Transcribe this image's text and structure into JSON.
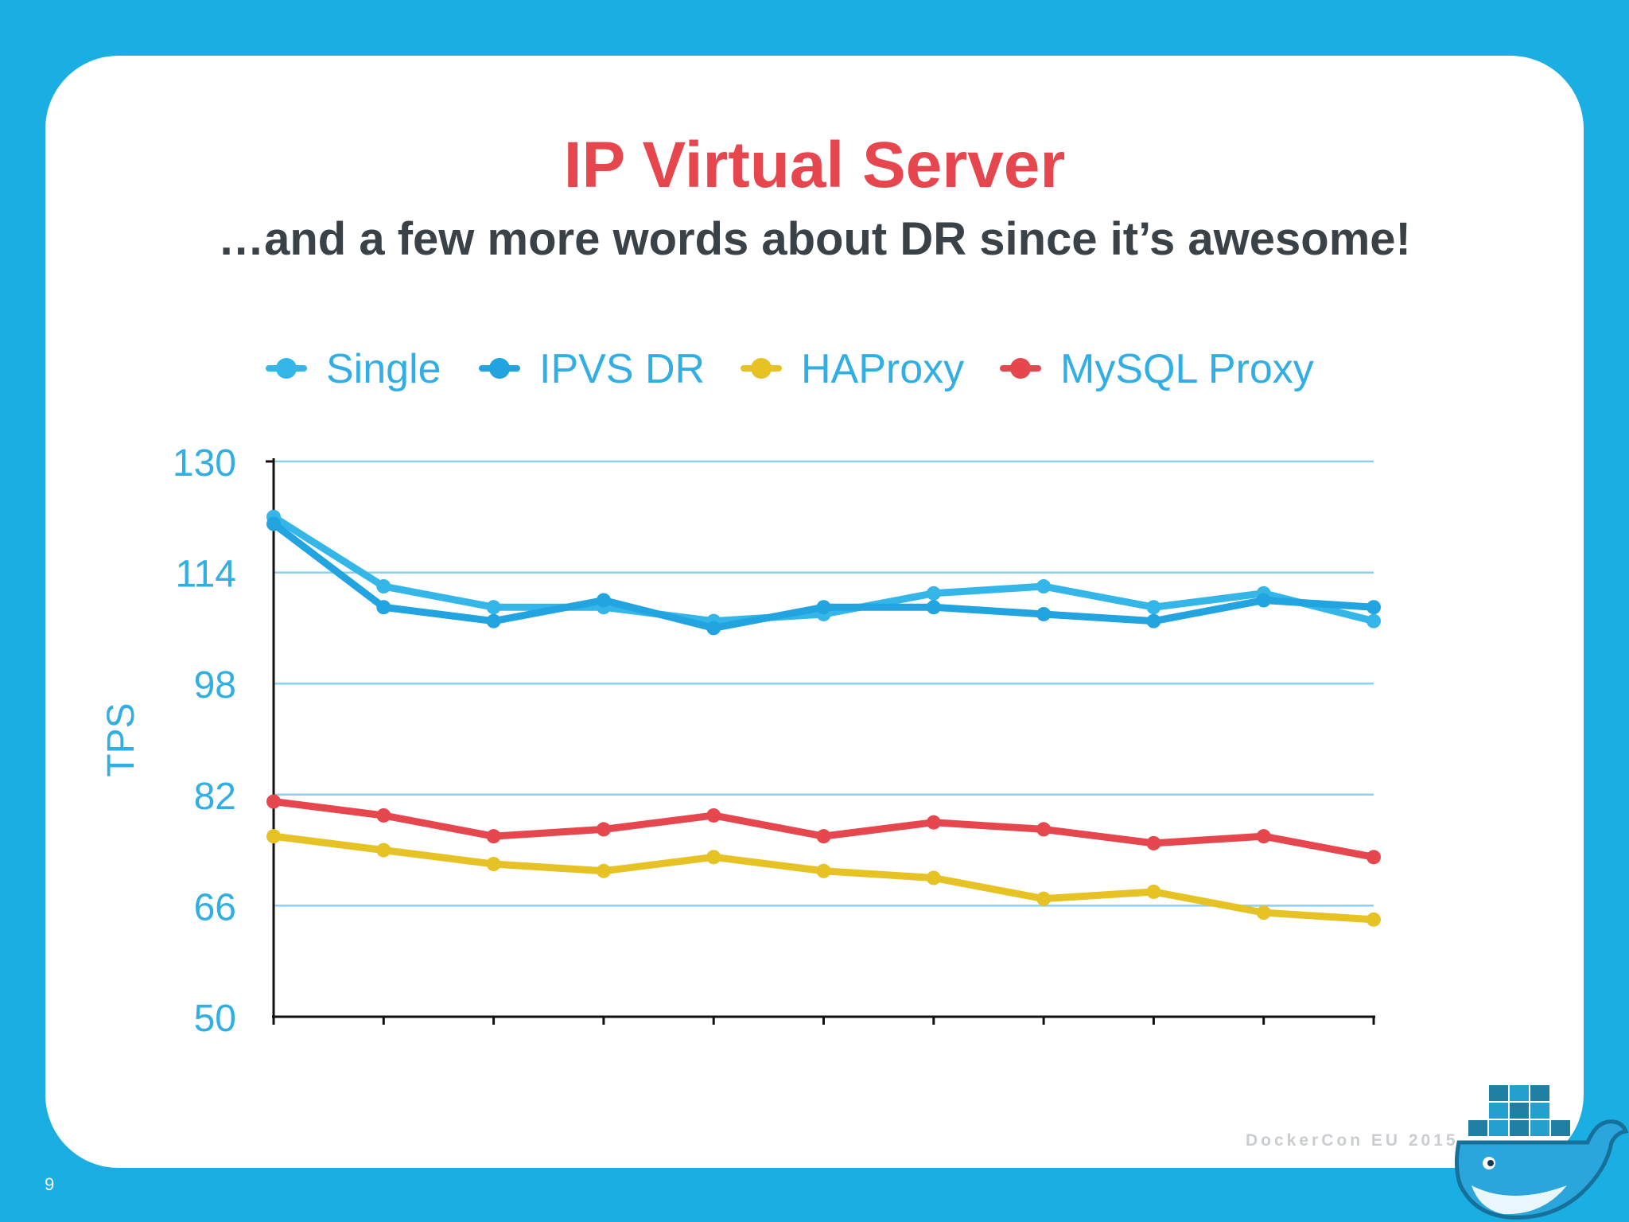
{
  "slide": {
    "title": "IP Virtual Server",
    "subtitle": "…and a few more words about DR since it’s awesome!",
    "page_number": "9",
    "footer": "DockerCon EU 2015"
  },
  "colors": {
    "background": "#1aaee2",
    "title": "#e6474f",
    "subtitle": "#3a4248",
    "axis_text": "#31aee3",
    "gridline": "#8ccfee"
  },
  "chart_data": {
    "type": "line",
    "title": "",
    "xlabel": "",
    "ylabel": "TPS",
    "ylim": [
      50,
      130
    ],
    "yticks": [
      50,
      66,
      82,
      98,
      114,
      130
    ],
    "x": [
      1,
      2,
      3,
      4,
      5,
      6,
      7,
      8,
      9,
      10,
      11
    ],
    "grid": true,
    "legend": "top",
    "series": [
      {
        "name": "Single",
        "color": "#34b6e8",
        "values": [
          122,
          112,
          109,
          109,
          107,
          108,
          111,
          112,
          109,
          111,
          107
        ]
      },
      {
        "name": "IPVS DR",
        "color": "#22a4e0",
        "values": [
          121,
          109,
          107,
          110,
          106,
          109,
          109,
          108,
          107,
          110,
          109
        ]
      },
      {
        "name": "HAProxy",
        "color": "#e7c224",
        "values": [
          76,
          74,
          72,
          71,
          73,
          71,
          70,
          67,
          68,
          65,
          64
        ]
      },
      {
        "name": "MySQL Proxy",
        "color": "#e6474f",
        "values": [
          81,
          79,
          76,
          77,
          79,
          76,
          78,
          77,
          75,
          76,
          73
        ]
      }
    ]
  }
}
